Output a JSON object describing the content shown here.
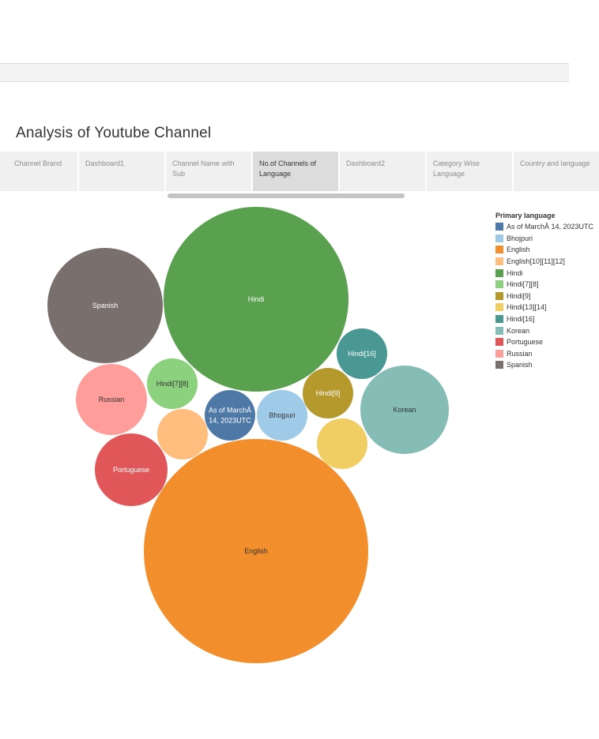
{
  "dashboard": {
    "title": "Analysis of Youtube Channel",
    "tabs": [
      {
        "label": "Channel Brand",
        "active": false
      },
      {
        "label": "Dashboard1",
        "active": false
      },
      {
        "label": "Channel Name with Sub",
        "active": false
      },
      {
        "label": "No.of Channels of Language",
        "active": true
      },
      {
        "label": "Dashboard2",
        "active": false
      },
      {
        "label": "Category Wise Language",
        "active": false
      },
      {
        "label": "Country and language",
        "active": false
      }
    ]
  },
  "legend": {
    "title": "Primary language",
    "items": [
      {
        "label": "As of MarchÂ 14, 2023UTC",
        "color": "#4e79a7"
      },
      {
        "label": "Bhojpuri",
        "color": "#a0cbe8"
      },
      {
        "label": "English",
        "color": "#f28e2b"
      },
      {
        "label": "English[10][11][12]",
        "color": "#ffbe7d"
      },
      {
        "label": "Hindi",
        "color": "#59a14f"
      },
      {
        "label": "Hindi[7][8]",
        "color": "#8cd17d"
      },
      {
        "label": "Hindi[9]",
        "color": "#b6992d"
      },
      {
        "label": "Hindi[13][14]",
        "color": "#f1ce63"
      },
      {
        "label": "Hindi[16]",
        "color": "#499894"
      },
      {
        "label": "Korean",
        "color": "#86bcb6"
      },
      {
        "label": "Portuguese",
        "color": "#e15759"
      },
      {
        "label": "Russian",
        "color": "#ff9d9a"
      },
      {
        "label": "Spanish",
        "color": "#79706e"
      }
    ]
  },
  "chart_data": {
    "type": "packed-bubble",
    "legend_title": "Primary language",
    "bubbles": [
      {
        "category": "English",
        "label": "English",
        "value": 22,
        "color": "#f28e2b",
        "text_color": "#333333"
      },
      {
        "category": "Hindi",
        "label": "Hindi",
        "value": 15,
        "color": "#59a14f",
        "text_color": "#ffffff"
      },
      {
        "category": "Spanish",
        "label": "Spanish",
        "value": 6,
        "color": "#79706e",
        "text_color": "#ffffff"
      },
      {
        "category": "Korean",
        "label": "Korean",
        "value": 4,
        "color": "#86bcb6",
        "text_color": "#333333"
      },
      {
        "category": "Russian",
        "label": "Russian",
        "value": 2,
        "color": "#ff9d9a",
        "text_color": "#333333"
      },
      {
        "category": "Portuguese",
        "label": "Portuguese",
        "value": 2,
        "color": "#e15759",
        "text_color": "#ffffff"
      },
      {
        "category": "Hindi[16]",
        "label": "Hindi[16]",
        "value": 1,
        "color": "#499894",
        "text_color": "#ffffff"
      },
      {
        "category": "Hindi[7][8]",
        "label": "Hindi[7][8]",
        "value": 1,
        "color": "#8cd17d",
        "text_color": "#333333"
      },
      {
        "category": "Hindi[9]",
        "label": "Hindi[9]",
        "value": 1,
        "color": "#b6992d",
        "text_color": "#ffffff"
      },
      {
        "category": "As of MarchÂ 14, 2023UTC",
        "label": "As of MarchÂ 14, 2023UTC",
        "value": 1,
        "color": "#4e79a7",
        "text_color": "#ffffff"
      },
      {
        "category": "Bhojpuri",
        "label": "Bhojpuri",
        "value": 1,
        "color": "#a0cbe8",
        "text_color": "#333333"
      },
      {
        "category": "English[10][11][12]",
        "label": "",
        "value": 1,
        "color": "#ffbe7d",
        "text_color": "#333333"
      },
      {
        "category": "Hindi[13][14]",
        "label": "",
        "value": 1,
        "color": "#f1ce63",
        "text_color": "#333333"
      }
    ]
  }
}
